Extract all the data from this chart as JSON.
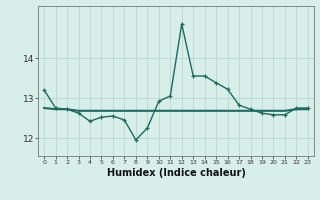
{
  "title": "",
  "xlabel": "Humidex (Indice chaleur)",
  "x": [
    0,
    1,
    2,
    3,
    4,
    5,
    6,
    7,
    8,
    9,
    10,
    11,
    12,
    13,
    14,
    15,
    16,
    17,
    18,
    19,
    20,
    21,
    22,
    23
  ],
  "y_curve": [
    13.2,
    12.75,
    12.72,
    12.62,
    12.42,
    12.52,
    12.55,
    12.45,
    11.95,
    12.25,
    12.92,
    13.05,
    14.85,
    13.55,
    13.55,
    13.38,
    13.22,
    12.82,
    12.72,
    12.62,
    12.58,
    12.58,
    12.75,
    12.75
  ],
  "y_flat": [
    12.75,
    12.72,
    12.72,
    12.68,
    12.68,
    12.68,
    12.68,
    12.68,
    12.68,
    12.68,
    12.68,
    12.68,
    12.68,
    12.68,
    12.68,
    12.68,
    12.68,
    12.68,
    12.68,
    12.68,
    12.68,
    12.68,
    12.72,
    12.72
  ],
  "bg_color": "#d8eee9",
  "grid_color": "#b8d8d0",
  "line_color": "#1c6b5e",
  "yticks": [
    12,
    13,
    14
  ],
  "ylim": [
    11.55,
    15.3
  ],
  "xlim": [
    -0.5,
    23.5
  ]
}
